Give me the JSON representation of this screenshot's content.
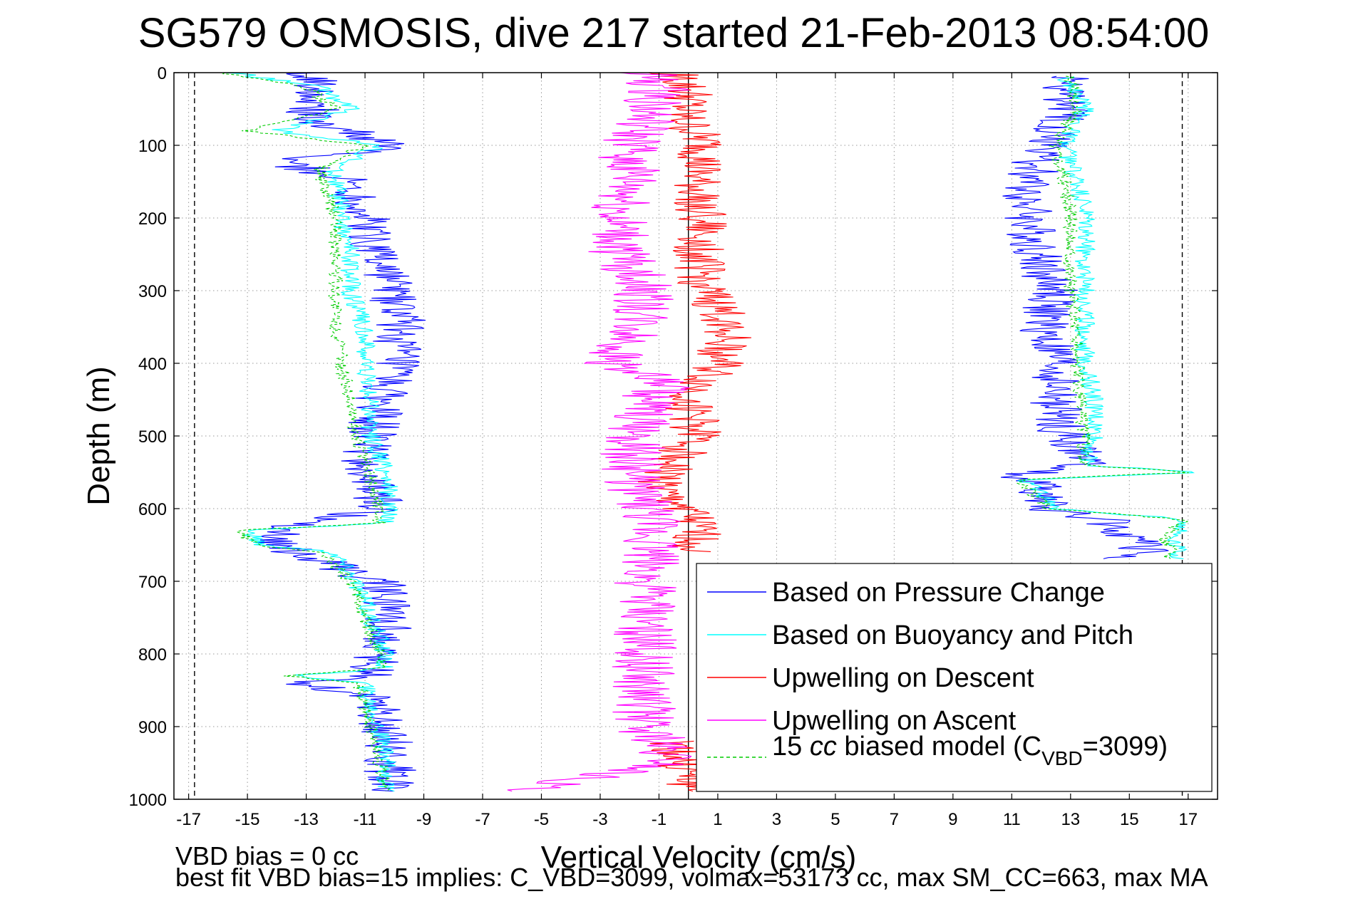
{
  "chart_data": {
    "type": "line",
    "title": "SG579 OSMOSIS, dive 217 started 21-Feb-2013 08:54:00",
    "xlabel": "Vertical Velocity (cm/s)",
    "ylabel": "Depth (m)",
    "xlim": [
      -17.5,
      18
    ],
    "ylim": [
      1000,
      0
    ],
    "y_reversed": true,
    "grid": true,
    "legend_position": "bottom-right",
    "xticks": [
      "-17",
      "-15",
      "-13",
      "-11",
      "-9",
      "-7",
      "-5",
      "-3",
      "-1",
      "1",
      "3",
      "5",
      "7",
      "9",
      "11",
      "13",
      "15",
      "17"
    ],
    "yticks": [
      "0",
      "100",
      "200",
      "300",
      "400",
      "500",
      "600",
      "700",
      "800",
      "900",
      "1000"
    ],
    "reference_lines": [
      {
        "x": -16.8,
        "style": "dashed",
        "color": "#000000"
      },
      {
        "x": 16.8,
        "style": "dashed",
        "color": "#000000"
      },
      {
        "x": 0,
        "style": "solid",
        "color": "#000000"
      }
    ],
    "series": [
      {
        "name": "Based on Pressure Change",
        "color": "#0000ff",
        "segments": [
          {
            "depth": [
              0,
              20,
              40,
              60,
              75,
              90,
              105,
              120,
              150,
              200,
              250,
              300,
              350,
              400,
              450,
              500,
              550,
              600,
              625,
              640,
              660,
              700,
              750,
              800,
              830,
              840,
              860,
              900,
              950,
              990
            ],
            "velocity": [
              -13,
              -12.5,
              -12.5,
              -13,
              -12,
              -11,
              -10,
              -14,
              -11.5,
              -11,
              -10.5,
              -10,
              -9.8,
              -10,
              -10.5,
              -10.8,
              -11,
              -10.5,
              -13.5,
              -14,
              -13.5,
              -10.5,
              -10.2,
              -10.5,
              -10.8,
              -13,
              -10.5,
              -10.3,
              -10.2,
              -10
            ]
          },
          {
            "depth": [
              5,
              50,
              100,
              150,
              200,
              250,
              300,
              350,
              400,
              450,
              500,
              540,
              555,
              570,
              600,
              615,
              640,
              660,
              670
            ],
            "velocity": [
              12.8,
              12.8,
              12.2,
              11.5,
              11.5,
              11.8,
              12.5,
              12,
              12.5,
              12.5,
              12.8,
              13.5,
              11.2,
              12,
              12,
              14.2,
              15,
              15.5,
              14.5
            ]
          }
        ]
      },
      {
        "name": "Based on Buoyancy and Pitch",
        "color": "#00ffff",
        "segments": [
          {
            "depth": [
              0,
              20,
              50,
              80,
              100,
              130,
              150,
              200,
              250,
              300,
              350,
              400,
              450,
              500,
              560,
              600,
              620,
              630,
              650,
              660,
              700,
              750,
              800,
              820,
              830,
              840,
              900,
              950,
              990
            ],
            "velocity": [
              -15.5,
              -12.5,
              -11.5,
              -14,
              -10.5,
              -12,
              -12,
              -11.8,
              -11.5,
              -11.5,
              -11,
              -11,
              -10.8,
              -10.8,
              -10.2,
              -10.2,
              -10.2,
              -15,
              -14.5,
              -12,
              -11.3,
              -10.8,
              -10.3,
              -10.3,
              -13.5,
              -11,
              -10.5,
              -10.3,
              -10.3
            ]
          },
          {
            "depth": [
              5,
              50,
              100,
              150,
              200,
              250,
              300,
              350,
              400,
              450,
              500,
              540,
              550,
              560,
              600,
              615,
              640,
              660,
              670
            ],
            "velocity": [
              12.8,
              13.5,
              12.8,
              13.2,
              13.5,
              13.5,
              13.5,
              13.5,
              13.5,
              13.8,
              13.8,
              13.5,
              17.5,
              11.5,
              12.5,
              17,
              16.5,
              16.8,
              16.5
            ]
          }
        ]
      },
      {
        "name": "Upwelling on Descent",
        "color": "#ff0000",
        "segments": [
          {
            "depth": [
              0,
              30,
              60,
              100,
              150,
              200,
              250,
              300,
              350,
              400,
              450,
              500,
              550,
              580,
              600,
              650,
              660
            ],
            "velocity": [
              -0.5,
              0,
              -0.3,
              0.5,
              0.2,
              0.5,
              0.3,
              0.5,
              1.5,
              1,
              0,
              0.3,
              -0.8,
              -1,
              0,
              0.3,
              0.4
            ]
          },
          {
            "depth": [
              920,
              950,
              990
            ],
            "velocity": [
              -0.5,
              -0.3,
              0.2
            ]
          }
        ]
      },
      {
        "name": "Upwelling on Ascent",
        "color": "#ff00ff",
        "segments": [
          {
            "depth": [
              0,
              30,
              60,
              100,
              150,
              200,
              250,
              300,
              350,
              400,
              430,
              450,
              500,
              550,
              600,
              650,
              700,
              750,
              800,
              850,
              900,
              950,
              990
            ],
            "velocity": [
              -1.5,
              -1,
              -1.5,
              -2,
              -2,
              -2.5,
              -2.3,
              -1.5,
              -1.8,
              -2.5,
              -0.8,
              -1.5,
              -1.8,
              -2,
              -1.5,
              -1.2,
              -1.5,
              -1.5,
              -1.5,
              -1.5,
              -1.5,
              -0.5,
              -6
            ]
          }
        ]
      },
      {
        "name": "15 cc biased model (C_VBD=3099)",
        "color": "#00cc00",
        "style": "dashed",
        "segments": [
          {
            "depth": [
              0,
              20,
              50,
              80,
              100,
              130,
              150,
              200,
              250,
              300,
              350,
              400,
              450,
              500,
              560,
              600,
              620,
              630,
              650,
              660,
              700,
              750,
              800,
              820,
              830,
              840,
              900,
              950,
              990
            ],
            "velocity": [
              -16,
              -13,
              -12,
              -15,
              -11,
              -12.5,
              -12.5,
              -12,
              -12,
              -12,
              -12,
              -11.8,
              -11.5,
              -11.3,
              -10.8,
              -10.5,
              -10.5,
              -15.3,
              -14.8,
              -12.5,
              -11.5,
              -11,
              -10.5,
              -10.5,
              -13.8,
              -11.2,
              -10.8,
              -10.5,
              -10.3
            ]
          },
          {
            "depth": [
              5,
              50,
              100,
              150,
              200,
              250,
              300,
              350,
              400,
              450,
              500,
              540,
              550,
              560,
              600,
              615,
              640,
              660,
              670
            ],
            "velocity": [
              13,
              13.2,
              12.5,
              12.8,
              13,
              13,
              13,
              13.2,
              13.2,
              13.3,
              13.5,
              13.3,
              17.2,
              11.2,
              12.3,
              16.8,
              16.2,
              16.5,
              16.3
            ]
          }
        ]
      }
    ]
  },
  "legend": {
    "items": [
      {
        "label": "Based on Pressure Change",
        "color": "#0000ff",
        "dash": false
      },
      {
        "label": "Based on Buoyancy and Pitch",
        "color": "#00ffff",
        "dash": false
      },
      {
        "label": "Upwelling on Descent",
        "color": "#ff0000",
        "dash": false
      },
      {
        "label": "Upwelling on Ascent",
        "color": "#ff00ff",
        "dash": false
      }
    ],
    "model_item": {
      "color": "#00cc00",
      "prefix": "15 ",
      "italic": "cc",
      "middle": " biased model (C",
      "subscript": "VBD",
      "suffix": "=3099)"
    }
  },
  "footer": {
    "line1": "VBD bias = 0 cc",
    "line2": "best fit VBD bias=15 implies: C_VBD=3099, volmax=53173 cc, max SM_CC=663, max MA"
  }
}
